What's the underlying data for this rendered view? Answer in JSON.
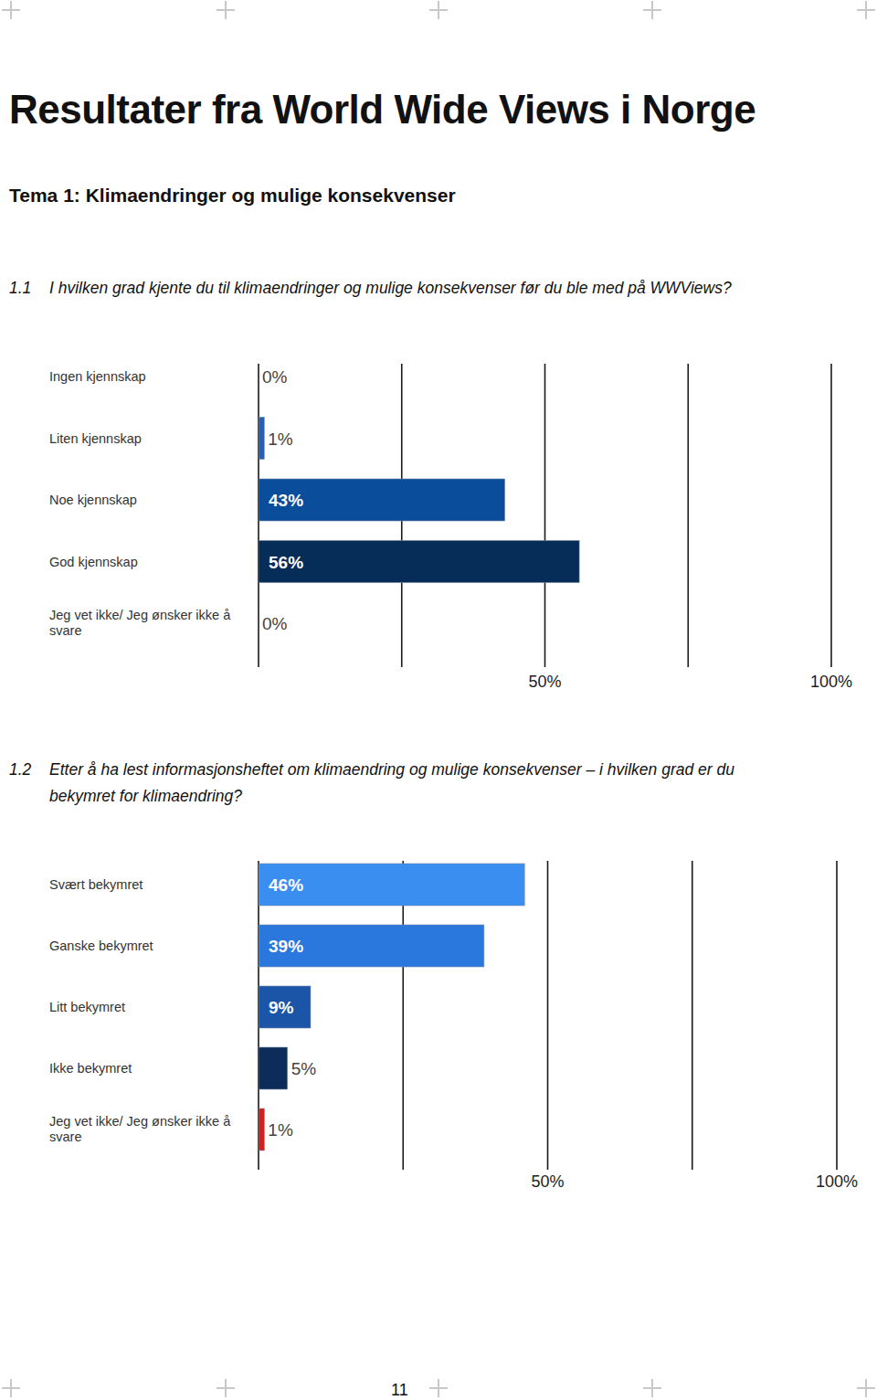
{
  "page": {
    "title": "Resultater fra World Wide Views i Norge",
    "subtitle": "Tema 1: Klimaendringer og mulige konsekvenser",
    "page_number": "11"
  },
  "chart_data": [
    {
      "type": "bar",
      "orientation": "horizontal",
      "title": "1.1 I hvilken grad kjente du til klimaendringer og mulige konsekvenser før du ble med på WWViews?",
      "categories": [
        "Ingen kjennskap",
        "Liten kjennskap",
        "Noe kjennskap",
        "God kjennskap",
        "Jeg vet ikke/ Jeg ønsker ikke å svare"
      ],
      "values": [
        0,
        1,
        43,
        56,
        0
      ],
      "value_labels": [
        "0%",
        "1%",
        "43%",
        "56%",
        "0%"
      ],
      "colors": [
        "#2a5eae",
        "#2a5eae",
        "#0a4e9b",
        "#062c58",
        "#2a5eae"
      ],
      "xlim": [
        0,
        100
      ],
      "xticks": [
        {
          "value": 0,
          "label": null
        },
        {
          "value": 25,
          "label": null
        },
        {
          "value": 50,
          "label": "50%"
        },
        {
          "value": 75,
          "label": null
        },
        {
          "value": 100,
          "label": "100%"
        }
      ],
      "grid": true,
      "data_labels": true
    },
    {
      "type": "bar",
      "orientation": "horizontal",
      "title": "1.2 Etter å ha lest informasjonsheftet om klimaendring og mulige konsekvenser – i hvilken grad er du bekymret for klimaendring?",
      "categories": [
        "Svært bekymret",
        "Ganske bekymret",
        "Litt bekymret",
        "Ikke bekymret",
        "Jeg vet ikke/ Jeg ønsker ikke å svare"
      ],
      "values": [
        46,
        39,
        9,
        5,
        1
      ],
      "value_labels": [
        "46%",
        "39%",
        "9%",
        "5%",
        "1%"
      ],
      "colors": [
        "#3a8ef0",
        "#2a78de",
        "#1a55a8",
        "#0c2d5a",
        "#cc2222"
      ],
      "xlim": [
        0,
        100
      ],
      "xticks": [
        {
          "value": 0,
          "label": null
        },
        {
          "value": 25,
          "label": null
        },
        {
          "value": 50,
          "label": "50%"
        },
        {
          "value": 75,
          "label": null
        },
        {
          "value": 100,
          "label": "100%"
        }
      ],
      "grid": true,
      "data_labels": true
    }
  ]
}
